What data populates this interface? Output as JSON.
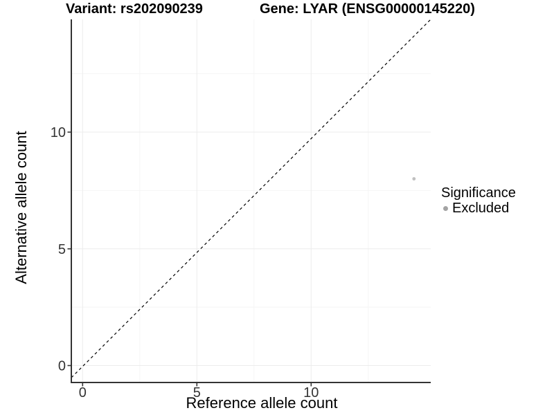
{
  "chart_data": {
    "type": "scatter",
    "title_left": "Variant: rs202090239",
    "title_right": "Gene: LYAR (ENSG00000145220)",
    "xlabel": "Reference allele count",
    "ylabel": "Alternative allele count",
    "x_ticks": [
      0,
      5,
      10
    ],
    "y_ticks": [
      0,
      5,
      10
    ],
    "x_minor_gridlines": [
      2.5,
      7.5,
      12.5
    ],
    "y_minor_gridlines": [
      2.5,
      7.5,
      12.5
    ],
    "xlim": [
      -0.5,
      15.2
    ],
    "ylim": [
      -0.7,
      14.8
    ],
    "grid": true,
    "reference_line": {
      "kind": "identity",
      "style": "dashed",
      "color": "#000000"
    },
    "points": [
      {
        "x": 14.5,
        "y": 8,
        "significance": "Excluded"
      }
    ],
    "legend": {
      "title": "Significance",
      "position": "right",
      "items": [
        {
          "label": "Excluded",
          "color": "#a3a3a3"
        }
      ]
    },
    "style": {
      "grid_major_color": "#ececec",
      "grid_minor_color": "#f5f5f5",
      "axis_color": "#333333",
      "tick_label_color": "#333333",
      "point_color": "#c0c0c0",
      "background": "#ffffff"
    }
  }
}
